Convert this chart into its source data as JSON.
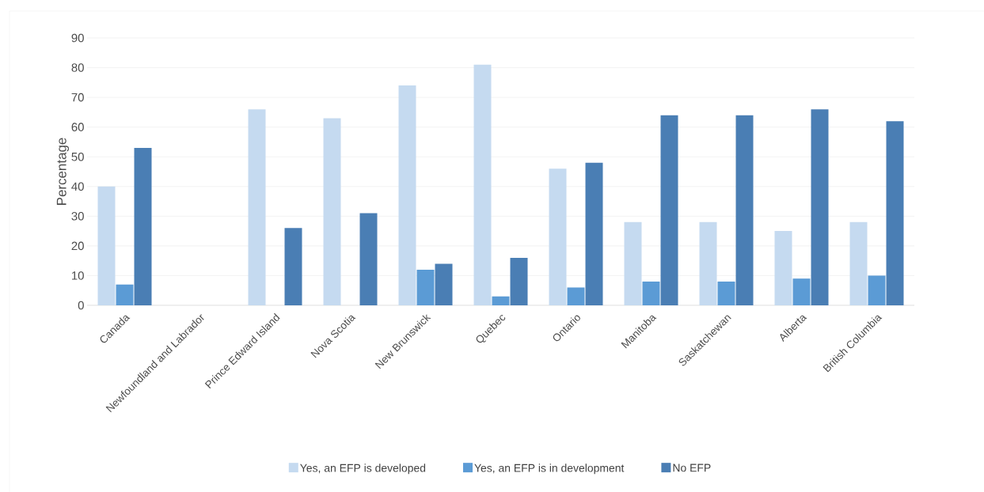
{
  "chart_data": {
    "type": "bar",
    "ylabel": "Percentage",
    "categories": [
      "Canada",
      "Newfoundland and Labrador",
      "Prince Edward Island",
      "Nova Scotia",
      "New Brunswick",
      "Quebec",
      "Ontario",
      "Manitoba",
      "Saskatchewan",
      "Alberta",
      "British Columbia"
    ],
    "series": [
      {
        "name": "Yes, an EFP is developed",
        "color": "#c5daf0",
        "values": [
          40,
          null,
          66,
          63,
          74,
          81,
          46,
          28,
          28,
          25,
          28
        ]
      },
      {
        "name": "Yes, an EFP is in development",
        "color": "#5b9bd5",
        "values": [
          7,
          null,
          null,
          null,
          12,
          3,
          6,
          8,
          8,
          9,
          10
        ]
      },
      {
        "name": "No EFP",
        "color": "#4a7eb4",
        "values": [
          53,
          null,
          26,
          31,
          14,
          16,
          48,
          64,
          64,
          66,
          62
        ]
      }
    ],
    "ylim": [
      0,
      90
    ],
    "yticks": [
      0,
      10,
      20,
      30,
      40,
      50,
      60,
      70,
      80,
      90
    ],
    "grid": "y",
    "legend": "bottom"
  }
}
